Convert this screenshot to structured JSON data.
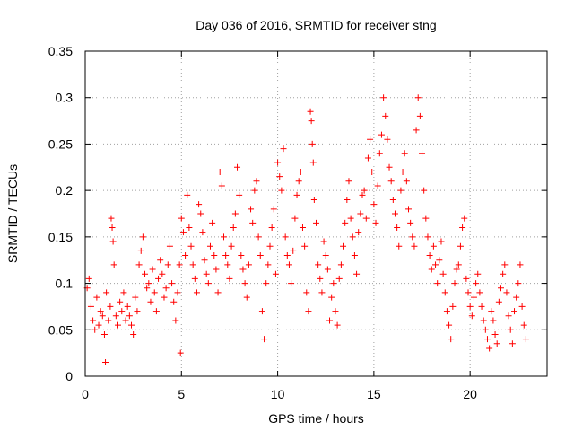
{
  "chart_data": {
    "type": "scatter",
    "title": "Day 036 of 2016, SRMTID for receiver stng",
    "xlabel": "GPS time / hours",
    "ylabel": "SRMTID / TECUs",
    "xlim": [
      0,
      24
    ],
    "ylim": [
      0,
      0.35
    ],
    "xticks": [
      0,
      5,
      10,
      15,
      20
    ],
    "yticks": [
      0,
      0.05,
      0.1,
      0.15,
      0.2,
      0.25,
      0.3,
      0.35
    ],
    "xtick_labels": [
      "0",
      "5",
      "10",
      "15",
      "20"
    ],
    "ytick_labels": [
      "0",
      "0.05",
      "0.1",
      "0.15",
      "0.2",
      "0.25",
      "0.3",
      "0.35"
    ],
    "grid": true,
    "marker": "+",
    "color": "#ff0000",
    "series": [
      {
        "name": "SRMTID",
        "points": [
          [
            0.1,
            0.095
          ],
          [
            0.2,
            0.105
          ],
          [
            0.3,
            0.075
          ],
          [
            0.4,
            0.06
          ],
          [
            0.5,
            0.05
          ],
          [
            0.6,
            0.085
          ],
          [
            0.7,
            0.055
          ],
          [
            0.8,
            0.07
          ],
          [
            0.9,
            0.065
          ],
          [
            1.0,
            0.045
          ],
          [
            1.05,
            0.015
          ],
          [
            1.1,
            0.09
          ],
          [
            1.2,
            0.06
          ],
          [
            1.3,
            0.075
          ],
          [
            1.35,
            0.17
          ],
          [
            1.4,
            0.16
          ],
          [
            1.45,
            0.145
          ],
          [
            1.5,
            0.12
          ],
          [
            1.6,
            0.065
          ],
          [
            1.7,
            0.055
          ],
          [
            1.8,
            0.08
          ],
          [
            1.9,
            0.07
          ],
          [
            2.0,
            0.09
          ],
          [
            2.1,
            0.06
          ],
          [
            2.2,
            0.075
          ],
          [
            2.3,
            0.065
          ],
          [
            2.4,
            0.055
          ],
          [
            2.5,
            0.045
          ],
          [
            2.6,
            0.085
          ],
          [
            2.7,
            0.07
          ],
          [
            2.8,
            0.12
          ],
          [
            2.9,
            0.135
          ],
          [
            3.0,
            0.15
          ],
          [
            3.1,
            0.11
          ],
          [
            3.2,
            0.095
          ],
          [
            3.3,
            0.1
          ],
          [
            3.4,
            0.08
          ],
          [
            3.5,
            0.115
          ],
          [
            3.6,
            0.09
          ],
          [
            3.7,
            0.07
          ],
          [
            3.8,
            0.105
          ],
          [
            3.9,
            0.125
          ],
          [
            4.0,
            0.11
          ],
          [
            4.1,
            0.085
          ],
          [
            4.2,
            0.095
          ],
          [
            4.3,
            0.12
          ],
          [
            4.4,
            0.14
          ],
          [
            4.5,
            0.1
          ],
          [
            4.6,
            0.08
          ],
          [
            4.7,
            0.06
          ],
          [
            4.8,
            0.09
          ],
          [
            4.9,
            0.12
          ],
          [
            4.95,
            0.025
          ],
          [
            5.0,
            0.17
          ],
          [
            5.1,
            0.155
          ],
          [
            5.2,
            0.13
          ],
          [
            5.3,
            0.195
          ],
          [
            5.4,
            0.16
          ],
          [
            5.5,
            0.14
          ],
          [
            5.6,
            0.12
          ],
          [
            5.7,
            0.105
          ],
          [
            5.8,
            0.09
          ],
          [
            5.9,
            0.185
          ],
          [
            6.0,
            0.175
          ],
          [
            6.1,
            0.155
          ],
          [
            6.2,
            0.125
          ],
          [
            6.3,
            0.11
          ],
          [
            6.4,
            0.1
          ],
          [
            6.5,
            0.14
          ],
          [
            6.6,
            0.165
          ],
          [
            6.7,
            0.13
          ],
          [
            6.8,
            0.115
          ],
          [
            6.9,
            0.09
          ],
          [
            7.0,
            0.22
          ],
          [
            7.1,
            0.205
          ],
          [
            7.2,
            0.15
          ],
          [
            7.3,
            0.13
          ],
          [
            7.4,
            0.12
          ],
          [
            7.5,
            0.105
          ],
          [
            7.6,
            0.14
          ],
          [
            7.7,
            0.16
          ],
          [
            7.8,
            0.175
          ],
          [
            7.9,
            0.225
          ],
          [
            8.0,
            0.195
          ],
          [
            8.1,
            0.13
          ],
          [
            8.2,
            0.115
          ],
          [
            8.3,
            0.1
          ],
          [
            8.4,
            0.085
          ],
          [
            8.5,
            0.12
          ],
          [
            8.6,
            0.18
          ],
          [
            8.7,
            0.165
          ],
          [
            8.8,
            0.2
          ],
          [
            8.9,
            0.21
          ],
          [
            9.0,
            0.15
          ],
          [
            9.1,
            0.13
          ],
          [
            9.2,
            0.07
          ],
          [
            9.3,
            0.04
          ],
          [
            9.4,
            0.1
          ],
          [
            9.5,
            0.12
          ],
          [
            9.6,
            0.14
          ],
          [
            9.7,
            0.16
          ],
          [
            9.8,
            0.18
          ],
          [
            9.9,
            0.11
          ],
          [
            10.0,
            0.23
          ],
          [
            10.1,
            0.215
          ],
          [
            10.2,
            0.2
          ],
          [
            10.3,
            0.245
          ],
          [
            10.4,
            0.15
          ],
          [
            10.5,
            0.13
          ],
          [
            10.6,
            0.12
          ],
          [
            10.7,
            0.1
          ],
          [
            10.8,
            0.135
          ],
          [
            10.9,
            0.17
          ],
          [
            11.0,
            0.195
          ],
          [
            11.1,
            0.21
          ],
          [
            11.2,
            0.22
          ],
          [
            11.3,
            0.16
          ],
          [
            11.4,
            0.14
          ],
          [
            11.5,
            0.09
          ],
          [
            11.6,
            0.07
          ],
          [
            11.7,
            0.285
          ],
          [
            11.75,
            0.275
          ],
          [
            11.8,
            0.25
          ],
          [
            11.85,
            0.23
          ],
          [
            11.9,
            0.19
          ],
          [
            12.0,
            0.165
          ],
          [
            12.1,
            0.12
          ],
          [
            12.2,
            0.105
          ],
          [
            12.3,
            0.09
          ],
          [
            12.4,
            0.145
          ],
          [
            12.5,
            0.13
          ],
          [
            12.6,
            0.115
          ],
          [
            12.7,
            0.06
          ],
          [
            12.8,
            0.085
          ],
          [
            12.9,
            0.1
          ],
          [
            13.0,
            0.07
          ],
          [
            13.1,
            0.055
          ],
          [
            13.2,
            0.105
          ],
          [
            13.3,
            0.12
          ],
          [
            13.4,
            0.14
          ],
          [
            13.5,
            0.165
          ],
          [
            13.6,
            0.19
          ],
          [
            13.7,
            0.21
          ],
          [
            13.8,
            0.17
          ],
          [
            13.9,
            0.15
          ],
          [
            14.0,
            0.13
          ],
          [
            14.1,
            0.11
          ],
          [
            14.2,
            0.155
          ],
          [
            14.3,
            0.175
          ],
          [
            14.4,
            0.195
          ],
          [
            14.5,
            0.2
          ],
          [
            14.6,
            0.17
          ],
          [
            14.7,
            0.235
          ],
          [
            14.8,
            0.255
          ],
          [
            14.9,
            0.22
          ],
          [
            15.0,
            0.185
          ],
          [
            15.1,
            0.165
          ],
          [
            15.2,
            0.205
          ],
          [
            15.3,
            0.24
          ],
          [
            15.4,
            0.26
          ],
          [
            15.5,
            0.3
          ],
          [
            15.6,
            0.28
          ],
          [
            15.7,
            0.255
          ],
          [
            15.8,
            0.225
          ],
          [
            15.9,
            0.21
          ],
          [
            16.0,
            0.19
          ],
          [
            16.1,
            0.175
          ],
          [
            16.2,
            0.16
          ],
          [
            16.3,
            0.14
          ],
          [
            16.4,
            0.2
          ],
          [
            16.5,
            0.22
          ],
          [
            16.6,
            0.24
          ],
          [
            16.7,
            0.21
          ],
          [
            16.8,
            0.18
          ],
          [
            16.9,
            0.165
          ],
          [
            17.0,
            0.15
          ],
          [
            17.1,
            0.14
          ],
          [
            17.2,
            0.265
          ],
          [
            17.3,
            0.3
          ],
          [
            17.4,
            0.28
          ],
          [
            17.5,
            0.24
          ],
          [
            17.6,
            0.2
          ],
          [
            17.7,
            0.17
          ],
          [
            17.8,
            0.15
          ],
          [
            17.9,
            0.13
          ],
          [
            18.0,
            0.115
          ],
          [
            18.1,
            0.14
          ],
          [
            18.2,
            0.12
          ],
          [
            18.3,
            0.1
          ],
          [
            18.4,
            0.125
          ],
          [
            18.5,
            0.145
          ],
          [
            18.6,
            0.11
          ],
          [
            18.7,
            0.09
          ],
          [
            18.8,
            0.07
          ],
          [
            18.9,
            0.055
          ],
          [
            19.0,
            0.04
          ],
          [
            19.1,
            0.075
          ],
          [
            19.2,
            0.1
          ],
          [
            19.3,
            0.115
          ],
          [
            19.4,
            0.12
          ],
          [
            19.5,
            0.14
          ],
          [
            19.6,
            0.16
          ],
          [
            19.7,
            0.17
          ],
          [
            19.8,
            0.105
          ],
          [
            19.9,
            0.09
          ],
          [
            20.0,
            0.075
          ],
          [
            20.1,
            0.065
          ],
          [
            20.2,
            0.085
          ],
          [
            20.3,
            0.1
          ],
          [
            20.4,
            0.11
          ],
          [
            20.5,
            0.09
          ],
          [
            20.6,
            0.075
          ],
          [
            20.7,
            0.06
          ],
          [
            20.8,
            0.05
          ],
          [
            20.9,
            0.04
          ],
          [
            21.0,
            0.03
          ],
          [
            21.1,
            0.07
          ],
          [
            21.2,
            0.06
          ],
          [
            21.3,
            0.045
          ],
          [
            21.4,
            0.035
          ],
          [
            21.5,
            0.08
          ],
          [
            21.6,
            0.095
          ],
          [
            21.7,
            0.11
          ],
          [
            21.8,
            0.12
          ],
          [
            21.9,
            0.09
          ],
          [
            22.0,
            0.065
          ],
          [
            22.1,
            0.05
          ],
          [
            22.2,
            0.035
          ],
          [
            22.3,
            0.07
          ],
          [
            22.4,
            0.085
          ],
          [
            22.5,
            0.1
          ],
          [
            22.6,
            0.12
          ],
          [
            22.7,
            0.075
          ],
          [
            22.8,
            0.055
          ],
          [
            22.9,
            0.04
          ]
        ]
      }
    ]
  }
}
